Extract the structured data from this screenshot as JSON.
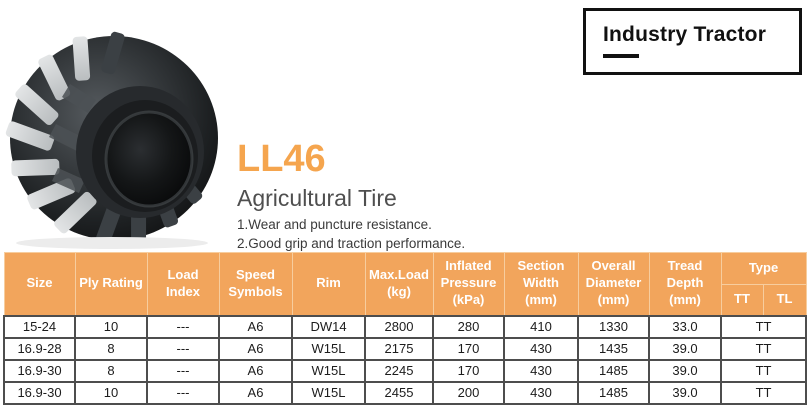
{
  "colors": {
    "accent": "#F2A55C",
    "accent-light-border": "#F7CD9E",
    "table-border": "#4D4D4D",
    "text-dark": "#1C1C1C",
    "text-gray": "#4F4F4F",
    "model-orange": "#F5A54E"
  },
  "header_box": {
    "title": "Industry Tractor"
  },
  "product": {
    "model": "LL46",
    "category": "Agricultural Tire",
    "features": [
      "1.Wear and puncture resistance.",
      "2.Good grip and traction performance."
    ]
  },
  "tire_image": {
    "name": "agricultural-tire-photo"
  },
  "table": {
    "headers": {
      "size": "Size",
      "ply_rating": "Ply Rating",
      "load_index": "Load Index",
      "speed_symbols": "Speed Symbols",
      "rim": "Rim",
      "max_load": "Max.Load (kg)",
      "inflated_pressure": "Inflated Pressure (kPa)",
      "section_width": "Section Width (mm)",
      "overall_diameter": "Overall Diameter (mm)",
      "tread_depth": "Tread Depth (mm)",
      "type": "Type",
      "tt": "TT",
      "tl": "TL"
    },
    "rows": [
      [
        "15-24",
        "10",
        "---",
        "A6",
        "DW14",
        "2800",
        "280",
        "410",
        "1330",
        "33.0",
        "TT"
      ],
      [
        "16.9-28",
        "8",
        "---",
        "A6",
        "W15L",
        "2175",
        "170",
        "430",
        "1435",
        "39.0",
        "TT"
      ],
      [
        "16.9-30",
        "8",
        "---",
        "A6",
        "W15L",
        "2245",
        "170",
        "430",
        "1485",
        "39.0",
        "TT"
      ],
      [
        "16.9-30",
        "10",
        "---",
        "A6",
        "W15L",
        "2455",
        "200",
        "430",
        "1485",
        "39.0",
        "TT"
      ]
    ]
  }
}
